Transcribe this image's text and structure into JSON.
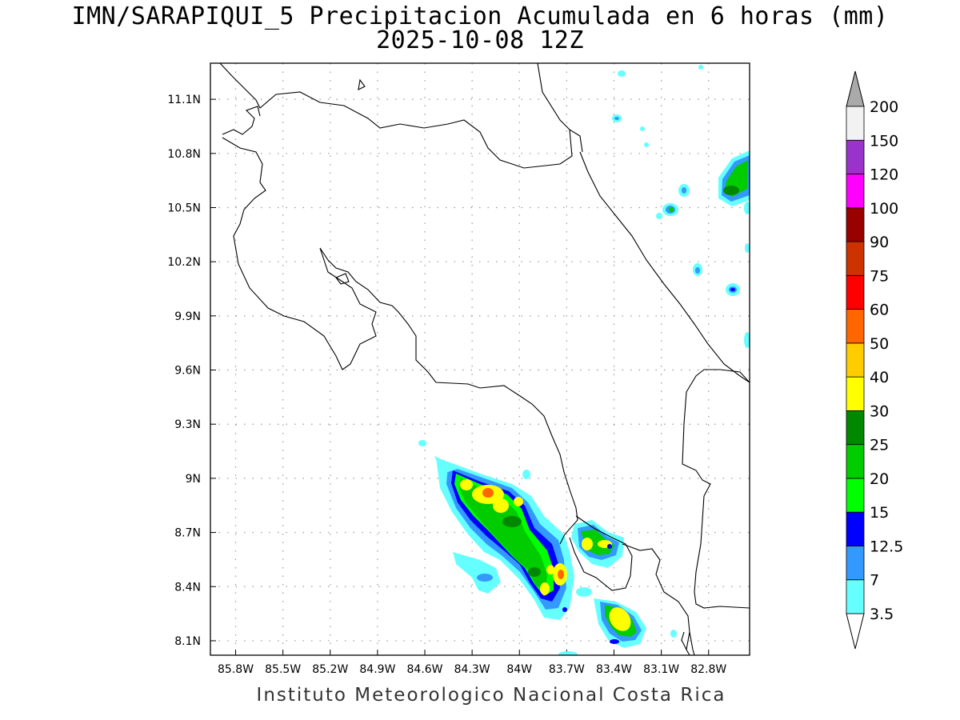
{
  "title": {
    "line1": "IMN/SARAPIQUI_5 Precipitacion Acumulada en 6 horas (mm)",
    "line2": "2025-10-08 12Z"
  },
  "footer": "Instituto Meteorologico Nacional Costa Rica",
  "axes": {
    "x_ticks": [
      "85.8W",
      "85.5W",
      "85.2W",
      "84.9W",
      "84.6W",
      "84.3W",
      "84W",
      "83.7W",
      "83.4W",
      "83.1W",
      "82.8W"
    ],
    "y_ticks": [
      "11.1N",
      "10.8N",
      "10.5N",
      "10.2N",
      "9.9N",
      "9.6N",
      "9.3N",
      "9N",
      "8.7N",
      "8.4N",
      "8.1N"
    ],
    "lon_range": [
      -85.96,
      -82.54
    ],
    "lat_range": [
      8.02,
      11.3
    ],
    "grid": true
  },
  "colorbar": {
    "labels": [
      "3.5",
      "7",
      "12.5",
      "15",
      "20",
      "25",
      "30",
      "40",
      "50",
      "60",
      "75",
      "90",
      "100",
      "120",
      "150",
      "200"
    ],
    "colors": [
      "#66ffff",
      "#3399ff",
      "#0000ff",
      "#00ff00",
      "#00cc00",
      "#008800",
      "#ffff00",
      "#ffcc00",
      "#ff6600",
      "#ff0000",
      "#cc3300",
      "#990000",
      "#ff00ff",
      "#9933cc",
      "#f2f2f2"
    ],
    "under_color": "#ffffff",
    "over_color": "#aaaaaa"
  }
}
